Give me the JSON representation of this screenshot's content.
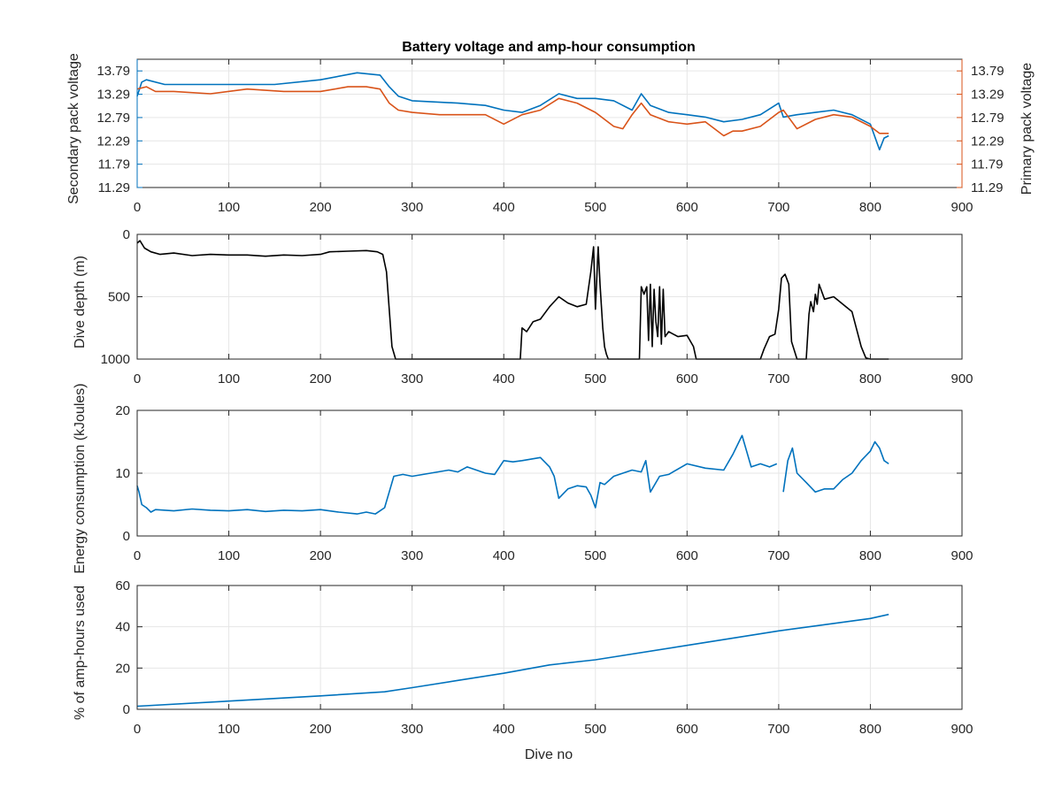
{
  "figure": {
    "title": "Battery voltage and amp-hour consumption",
    "xlabel": "Dive no"
  },
  "colors": {
    "blue": "#0072BD",
    "orange": "#D95319",
    "black": "#000000",
    "grid": "#e6e6e6",
    "axis": "#262626"
  },
  "chart_data": [
    {
      "type": "line",
      "title": "Battery voltage and amp-hour consumption",
      "xlabel": "",
      "ylabel": "Secondary pack voltage",
      "ylabel_right": "Primary pack voltage",
      "xlim": [
        0,
        900
      ],
      "xticks": [
        "0",
        "100",
        "200",
        "300",
        "400",
        "500",
        "600",
        "700",
        "800",
        "900"
      ],
      "ylim": [
        11.29,
        14.04
      ],
      "yticks": [
        "11.29",
        "11.79",
        "12.29",
        "12.79",
        "13.29",
        "13.79"
      ],
      "yticks_right": [
        "11.29",
        "11.79",
        "12.29",
        "12.79",
        "13.29",
        "13.79"
      ],
      "grid": true,
      "series": [
        {
          "name": "Secondary pack voltage",
          "color": "#0072BD",
          "axis": "left",
          "x": [
            0,
            5,
            10,
            30,
            60,
            100,
            150,
            200,
            240,
            265,
            275,
            285,
            300,
            350,
            380,
            400,
            420,
            440,
            460,
            480,
            500,
            520,
            540,
            550,
            560,
            580,
            600,
            620,
            640,
            660,
            680,
            700,
            705,
            720,
            740,
            760,
            780,
            800,
            810,
            815,
            820
          ],
          "y": [
            13.25,
            13.55,
            13.6,
            13.5,
            13.5,
            13.5,
            13.5,
            13.6,
            13.75,
            13.7,
            13.45,
            13.25,
            13.15,
            13.1,
            13.05,
            12.95,
            12.9,
            13.05,
            13.3,
            13.2,
            13.2,
            13.15,
            12.95,
            13.3,
            13.05,
            12.9,
            12.85,
            12.8,
            12.7,
            12.75,
            12.85,
            13.1,
            12.8,
            12.85,
            12.9,
            12.95,
            12.85,
            12.65,
            12.1,
            12.35,
            12.4
          ]
        },
        {
          "name": "Primary pack voltage",
          "color": "#D95319",
          "axis": "right",
          "x": [
            0,
            10,
            20,
            40,
            80,
            120,
            160,
            200,
            230,
            250,
            265,
            275,
            285,
            300,
            330,
            380,
            400,
            420,
            440,
            460,
            480,
            500,
            520,
            530,
            540,
            550,
            560,
            580,
            600,
            620,
            640,
            650,
            660,
            680,
            700,
            705,
            720,
            740,
            760,
            780,
            800,
            810,
            820
          ],
          "y": [
            13.4,
            13.45,
            13.35,
            13.35,
            13.3,
            13.4,
            13.35,
            13.35,
            13.45,
            13.45,
            13.4,
            13.1,
            12.95,
            12.9,
            12.85,
            12.85,
            12.65,
            12.85,
            12.95,
            13.2,
            13.1,
            12.9,
            12.6,
            12.55,
            12.85,
            13.1,
            12.85,
            12.7,
            12.65,
            12.7,
            12.4,
            12.5,
            12.5,
            12.6,
            12.9,
            12.95,
            12.55,
            12.75,
            12.85,
            12.8,
            12.6,
            12.45,
            12.45
          ]
        }
      ]
    },
    {
      "type": "line",
      "title": "",
      "xlabel": "",
      "ylabel": "Dive depth (m)",
      "xlim": [
        0,
        900
      ],
      "xticks": [
        "0",
        "100",
        "200",
        "300",
        "400",
        "500",
        "600",
        "700",
        "800",
        "900"
      ],
      "ylim": [
        0,
        1000
      ],
      "y_reversed": true,
      "yticks": [
        "0",
        "500",
        "1000"
      ],
      "grid": true,
      "series": [
        {
          "name": "",
          "color": "#000000",
          "x": [
            0,
            3,
            8,
            15,
            25,
            40,
            60,
            80,
            100,
            120,
            140,
            160,
            180,
            200,
            210,
            230,
            250,
            262,
            268,
            272,
            275,
            278,
            282,
            300,
            350,
            400,
            418,
            420,
            425,
            432,
            440,
            450,
            460,
            470,
            480,
            490,
            495,
            498,
            500,
            503,
            505,
            508,
            510,
            512,
            514,
            520,
            530,
            540,
            548,
            550,
            553,
            556,
            558,
            560,
            562,
            564,
            566,
            568,
            570,
            572,
            574,
            576,
            580,
            590,
            600,
            607,
            610,
            620,
            640,
            660,
            680,
            684,
            690,
            696,
            700,
            703,
            707,
            711,
            714,
            720,
            730,
            733,
            735,
            738,
            740,
            742,
            744,
            750,
            760,
            770,
            780,
            790,
            795,
            800,
            820
          ],
          "y": [
            70,
            50,
            110,
            140,
            160,
            150,
            170,
            160,
            165,
            165,
            175,
            165,
            170,
            160,
            140,
            135,
            130,
            140,
            160,
            300,
            600,
            900,
            1000,
            1000,
            1000,
            1000,
            1000,
            750,
            780,
            700,
            680,
            580,
            500,
            550,
            580,
            560,
            300,
            100,
            600,
            100,
            400,
            750,
            900,
            960,
            1000,
            1000,
            1000,
            1000,
            1000,
            420,
            480,
            420,
            850,
            400,
            900,
            440,
            700,
            820,
            420,
            880,
            440,
            820,
            780,
            820,
            810,
            900,
            1000,
            1000,
            1000,
            1000,
            1000,
            920,
            820,
            800,
            600,
            350,
            320,
            400,
            860,
            1000,
            1000,
            640,
            540,
            620,
            480,
            560,
            400,
            520,
            500,
            560,
            620,
            900,
            990,
            1000,
            1000
          ]
        }
      ]
    },
    {
      "type": "line",
      "title": "",
      "xlabel": "",
      "ylabel": "Energy consumption (kJoules)",
      "xlim": [
        0,
        900
      ],
      "xticks": [
        "0",
        "100",
        "200",
        "300",
        "400",
        "500",
        "600",
        "700",
        "800",
        "900"
      ],
      "ylim": [
        0,
        20
      ],
      "yticks": [
        "0",
        "10",
        "20"
      ],
      "grid": true,
      "series": [
        {
          "name": "",
          "color": "#0072BD",
          "x": [
            0,
            2,
            5,
            10,
            15,
            20,
            40,
            60,
            80,
            100,
            120,
            140,
            160,
            180,
            200,
            220,
            240,
            250,
            260,
            265,
            270,
            275,
            280,
            290,
            300,
            320,
            340,
            350,
            360,
            380,
            390,
            400,
            410,
            420,
            440,
            450,
            455,
            460,
            470,
            480,
            490,
            495,
            500,
            505,
            510,
            520,
            530,
            540,
            550,
            555,
            560,
            570,
            580,
            600,
            620,
            640,
            650,
            660,
            670,
            680,
            690,
            698,
            700,
            705,
            710,
            715,
            720,
            730,
            740,
            750,
            760,
            770,
            780,
            790,
            800,
            805,
            810,
            815,
            820
          ],
          "y": [
            8,
            7,
            5,
            4.5,
            3.8,
            4.2,
            4.0,
            4.3,
            4.1,
            4.0,
            4.2,
            3.9,
            4.1,
            4.0,
            4.2,
            3.8,
            3.5,
            3.8,
            3.5,
            4.0,
            4.5,
            7,
            9.5,
            9.8,
            9.5,
            10,
            10.5,
            10.2,
            11,
            10,
            9.8,
            12,
            11.8,
            12,
            12.5,
            11,
            9.5,
            6,
            7.5,
            8,
            7.8,
            6.5,
            4.5,
            8.5,
            8.2,
            9.5,
            10,
            10.5,
            10.2,
            12,
            7,
            9.5,
            9.8,
            11.5,
            10.8,
            10.5,
            13,
            16,
            11,
            11.5,
            11,
            11.5,
            null,
            7,
            12,
            14,
            10,
            8.5,
            7,
            7.5,
            7.5,
            9,
            10,
            12,
            13.5,
            15,
            14,
            12,
            11.5
          ]
        }
      ]
    },
    {
      "type": "line",
      "title": "",
      "xlabel": "Dive no",
      "ylabel": "% of amp-hours used",
      "xlim": [
        0,
        900
      ],
      "xticks": [
        "0",
        "100",
        "200",
        "300",
        "400",
        "500",
        "600",
        "700",
        "800",
        "900"
      ],
      "ylim": [
        0,
        60
      ],
      "yticks": [
        "0",
        "20",
        "40",
        "60"
      ],
      "grid": true,
      "series": [
        {
          "name": "",
          "color": "#0072BD",
          "x": [
            0,
            100,
            200,
            270,
            300,
            350,
            400,
            450,
            500,
            600,
            700,
            750,
            800,
            820
          ],
          "y": [
            1.5,
            4,
            6.5,
            8.5,
            10.5,
            14,
            17.5,
            21.5,
            24,
            31,
            38,
            41,
            44,
            46
          ]
        }
      ]
    }
  ]
}
